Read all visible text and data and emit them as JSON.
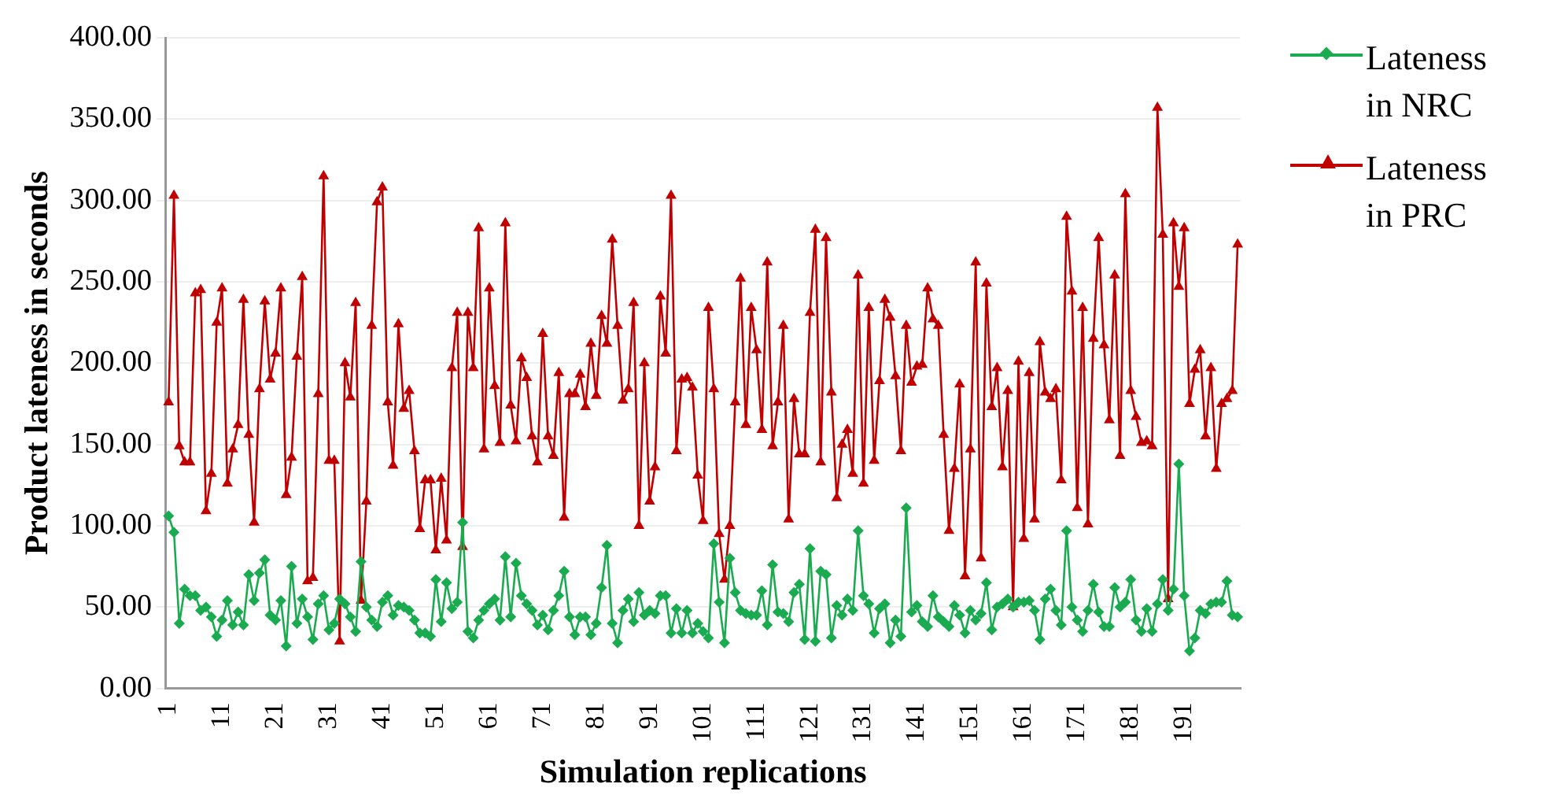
{
  "chart_data": {
    "type": "line",
    "xlabel": "Simulation replications",
    "ylabel": "Product lateness in seconds",
    "categories": [
      "1",
      null,
      null,
      null,
      null,
      null,
      null,
      null,
      null,
      null,
      "11",
      null,
      null,
      null,
      null,
      null,
      null,
      null,
      null,
      null,
      "21",
      null,
      null,
      null,
      null,
      null,
      null,
      null,
      null,
      null,
      "31",
      null,
      null,
      null,
      null,
      null,
      null,
      null,
      null,
      null,
      "41",
      null,
      null,
      null,
      null,
      null,
      null,
      null,
      null,
      null,
      "51",
      null,
      null,
      null,
      null,
      null,
      null,
      null,
      null,
      null,
      "61",
      null,
      null,
      null,
      null,
      null,
      null,
      null,
      null,
      null,
      "71",
      null,
      null,
      null,
      null,
      null,
      null,
      null,
      null,
      null,
      "81",
      null,
      null,
      null,
      null,
      null,
      null,
      null,
      null,
      null,
      "91",
      null,
      null,
      null,
      null,
      null,
      null,
      null,
      null,
      null,
      "101",
      null,
      null,
      null,
      null,
      null,
      null,
      null,
      null,
      null,
      "111",
      null,
      null,
      null,
      null,
      null,
      null,
      null,
      null,
      null,
      "121",
      null,
      null,
      null,
      null,
      null,
      null,
      null,
      null,
      null,
      "131",
      null,
      null,
      null,
      null,
      null,
      null,
      null,
      null,
      null,
      "141",
      null,
      null,
      null,
      null,
      null,
      null,
      null,
      null,
      null,
      "151",
      null,
      null,
      null,
      null,
      null,
      null,
      null,
      null,
      null,
      "161",
      null,
      null,
      null,
      null,
      null,
      null,
      null,
      null,
      null,
      "171",
      null,
      null,
      null,
      null,
      null,
      null,
      null,
      null,
      null,
      "181",
      null,
      null,
      null,
      null,
      null,
      null,
      null,
      null,
      null,
      "191",
      null,
      null,
      null,
      null,
      null,
      null,
      null,
      null,
      null,
      null
    ],
    "series": [
      {
        "name": "Lateness in NRC",
        "color": "#1aab50",
        "marker": "diamond",
        "values": [
          106,
          96,
          40,
          61,
          57,
          57,
          48,
          50,
          44,
          32,
          42,
          54,
          39,
          47,
          39,
          70,
          54,
          71,
          79,
          45,
          42,
          54,
          26,
          75,
          40,
          55,
          44,
          30,
          52,
          57,
          36,
          40,
          55,
          52,
          44,
          35,
          78,
          50,
          42,
          38,
          53,
          57,
          45,
          51,
          50,
          48,
          42,
          34,
          34,
          32,
          67,
          41,
          65,
          49,
          53,
          102,
          35,
          31,
          42,
          48,
          52,
          55,
          42,
          81,
          44,
          77,
          57,
          52,
          48,
          39,
          45,
          36,
          48,
          57,
          72,
          44,
          33,
          44,
          44,
          33,
          40,
          62,
          88,
          40,
          28,
          48,
          55,
          41,
          59,
          45,
          48,
          46,
          57,
          57,
          34,
          49,
          34,
          48,
          34,
          40,
          35,
          31,
          89,
          53,
          28,
          80,
          59,
          48,
          46,
          45,
          45,
          60,
          39,
          76,
          47,
          46,
          41,
          59,
          64,
          30,
          86,
          29,
          72,
          70,
          31,
          51,
          45,
          55,
          48,
          97,
          57,
          52,
          34,
          49,
          52,
          28,
          42,
          32,
          111,
          47,
          51,
          41,
          38,
          57,
          44,
          41,
          38,
          51,
          45,
          34,
          48,
          42,
          46,
          65,
          36,
          50,
          52,
          55,
          50,
          53,
          53,
          54,
          48,
          30,
          55,
          61,
          48,
          39,
          97,
          50,
          42,
          35,
          48,
          64,
          47,
          38,
          38,
          62,
          50,
          53,
          67,
          42,
          35,
          49,
          35,
          52,
          67,
          48,
          61,
          138,
          57,
          23,
          31,
          48,
          46,
          52,
          53,
          53,
          66,
          45,
          44
        ]
      },
      {
        "name": "Lateness in PRC",
        "color": "#c00000",
        "marker": "triangle",
        "values": [
          176,
          303,
          149,
          139,
          139,
          243,
          245,
          109,
          132,
          225,
          246,
          126,
          147,
          162,
          239,
          156,
          102,
          184,
          238,
          190,
          206,
          246,
          119,
          142,
          204,
          253,
          66,
          68,
          181,
          315,
          140,
          140,
          29,
          200,
          179,
          237,
          54,
          115,
          223,
          299,
          308,
          176,
          137,
          224,
          172,
          183,
          146,
          98,
          128,
          128,
          85,
          129,
          91,
          197,
          231,
          87,
          231,
          197,
          283,
          147,
          246,
          186,
          151,
          286,
          174,
          152,
          203,
          191,
          155,
          139,
          218,
          155,
          143,
          194,
          105,
          181,
          181,
          193,
          173,
          212,
          180,
          229,
          212,
          276,
          223,
          177,
          184,
          237,
          100,
          200,
          115,
          136,
          241,
          206,
          303,
          146,
          190,
          191,
          185,
          131,
          103,
          234,
          184,
          95,
          67,
          100,
          176,
          252,
          162,
          234,
          208,
          159,
          262,
          149,
          176,
          223,
          104,
          178,
          144,
          144,
          231,
          282,
          139,
          277,
          182,
          117,
          150,
          159,
          132,
          254,
          126,
          234,
          140,
          189,
          239,
          228,
          192,
          146,
          223,
          188,
          198,
          199,
          246,
          227,
          223,
          156,
          97,
          135,
          187,
          69,
          147,
          262,
          80,
          249,
          173,
          197,
          136,
          183,
          50,
          201,
          92,
          194,
          104,
          213,
          182,
          178,
          184,
          128,
          290,
          244,
          111,
          234,
          101,
          215,
          277,
          211,
          165,
          254,
          143,
          304,
          183,
          167,
          151,
          152,
          149,
          357,
          279,
          55,
          286,
          247,
          283,
          175,
          196,
          208,
          155,
          197,
          135,
          175,
          178,
          183,
          273
        ]
      }
    ],
    "ylim": [
      0,
      400
    ],
    "yticks": [
      {
        "value": 0,
        "label": "0.00"
      },
      {
        "value": 50,
        "label": "50.00"
      },
      {
        "value": 100,
        "label": "100.00"
      },
      {
        "value": 150,
        "label": "150.00"
      },
      {
        "value": 200,
        "label": "200.00"
      },
      {
        "value": 250,
        "label": "250.00"
      },
      {
        "value": 300,
        "label": "300.00"
      },
      {
        "value": 350,
        "label": "350.00"
      },
      {
        "value": 400,
        "label": "400.00"
      }
    ],
    "grid": "y",
    "legend": "right",
    "line_style": "solid"
  }
}
